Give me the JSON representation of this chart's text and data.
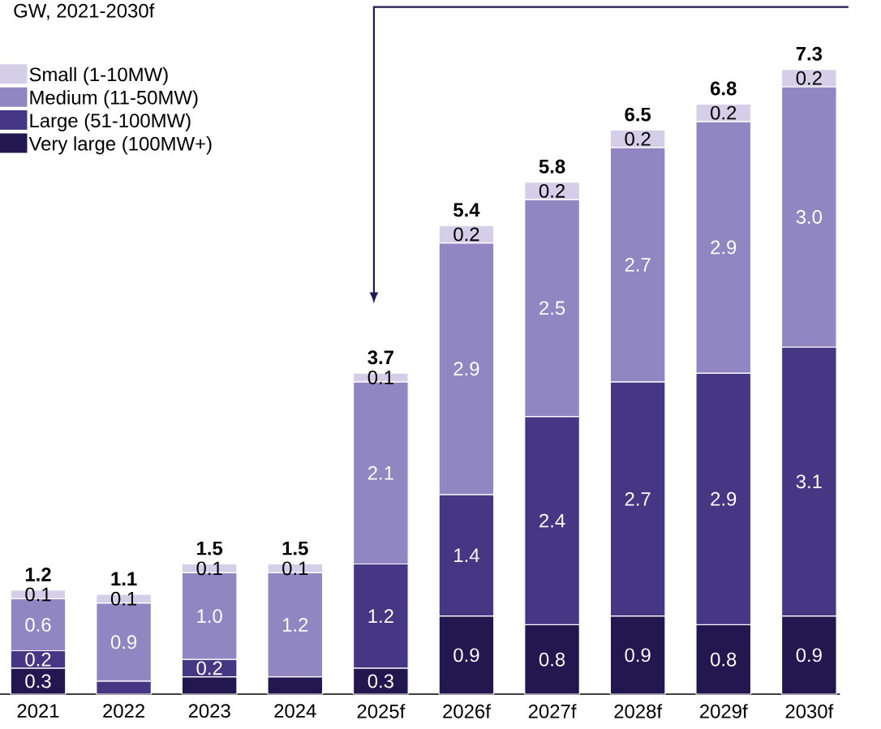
{
  "chart_data": {
    "type": "bar",
    "title": "GW, 2021-2030f",
    "stacked": true,
    "legend": "top left",
    "categories": [
      "2021",
      "2022",
      "2023",
      "2024",
      "2025f",
      "2026f",
      "2027f",
      "2028f",
      "2029f",
      "2030f"
    ],
    "series": [
      {
        "name": "Very large (100MW+)",
        "color": "#22174f",
        "values": [
          0.3,
          null,
          0.2,
          0.2,
          0.3,
          0.9,
          0.8,
          0.9,
          0.8,
          0.9
        ],
        "value_labels": [
          "0.3",
          null,
          null,
          null,
          "0.3",
          "0.9",
          "0.8",
          "0.9",
          "0.8",
          "0.9"
        ]
      },
      {
        "name": "Large (51-100MW)",
        "color": "#453783",
        "values": [
          0.2,
          0.15,
          0.2,
          null,
          1.2,
          1.4,
          2.4,
          2.7,
          2.9,
          3.1
        ],
        "value_labels": [
          "0.2",
          null,
          "0.2",
          null,
          "1.2",
          "1.4",
          "2.4",
          "2.7",
          "2.9",
          "3.1"
        ]
      },
      {
        "name": "Medium (11-50MW)",
        "color": "#8f86c2",
        "values": [
          0.6,
          0.9,
          1.0,
          1.2,
          2.1,
          2.9,
          2.5,
          2.7,
          2.9,
          3.0
        ],
        "value_labels": [
          "0.6",
          "0.9",
          "1.0",
          "1.2",
          "2.1",
          "2.9",
          "2.5",
          "2.7",
          "2.9",
          "3.0"
        ]
      },
      {
        "name": "Small (1-10MW)",
        "color": "#d5cee8",
        "values": [
          0.1,
          0.1,
          0.1,
          0.1,
          0.1,
          0.2,
          0.2,
          0.2,
          0.2,
          0.2
        ],
        "value_labels": [
          "0.1",
          "0.1",
          "0.1",
          "0.1",
          "0.1",
          "0.2",
          "0.2",
          "0.2",
          "0.2",
          "0.2"
        ]
      }
    ],
    "totals": [
      "1.2",
      "1.1",
      "1.5",
      "1.5",
      "3.7",
      "5.4",
      "5.8",
      "6.5",
      "6.8",
      "7.3"
    ]
  }
}
